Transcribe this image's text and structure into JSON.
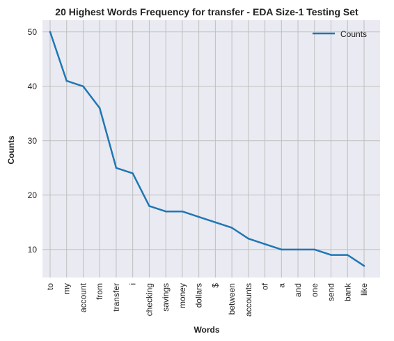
{
  "chart_data": {
    "type": "line",
    "title": "20 Highest Words Frequency for transfer - EDA Size-1 Testing Set",
    "xlabel": "Words",
    "ylabel": "Counts",
    "categories": [
      "to",
      "my",
      "account",
      "from",
      "transfer",
      "i",
      "checking",
      "savings",
      "money",
      "dollars",
      "$",
      "between",
      "accounts",
      "of",
      "a",
      "and",
      "one",
      "send",
      "bank",
      "like"
    ],
    "series": [
      {
        "name": "Counts",
        "values": [
          50,
          41,
          40,
          36,
          25,
          24,
          18,
          17,
          17,
          16,
          15,
          14,
          12,
          11,
          10,
          10,
          10,
          9,
          9,
          7
        ],
        "color": "#1f77b4"
      }
    ],
    "ylim": [
      4.85,
      52.15
    ],
    "yticks": [
      10,
      20,
      30,
      40,
      50
    ],
    "grid": true,
    "legend": "top-right",
    "colors": {
      "plot_background": "#eaeaf2",
      "grid": "#bfbfbf",
      "line": "#1f77b4"
    }
  }
}
